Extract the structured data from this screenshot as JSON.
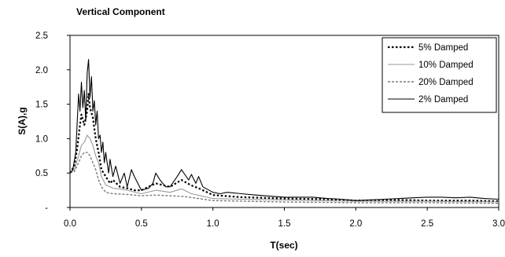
{
  "chart_data": {
    "type": "line",
    "title": "Vertical Component",
    "xlabel": "T(sec)",
    "ylabel": "S(A),g",
    "xlim": [
      0,
      3
    ],
    "ylim": [
      0,
      2.5
    ],
    "xticks": [
      "0.0",
      "0.5",
      "1.0",
      "1.5",
      "2.0",
      "2.5",
      "3.0"
    ],
    "yticks": [
      "-",
      "0.5",
      "1.0",
      "1.5",
      "2.0",
      "2.5"
    ],
    "grid": false,
    "legend_position": "top-right",
    "series": [
      {
        "name": "5%  Damped",
        "color": "#000000",
        "style": "dotted-thick",
        "x": [
          0,
          0.03,
          0.05,
          0.07,
          0.08,
          0.1,
          0.12,
          0.13,
          0.14,
          0.16,
          0.18,
          0.2,
          0.22,
          0.25,
          0.28,
          0.3,
          0.35,
          0.4,
          0.45,
          0.5,
          0.6,
          0.7,
          0.78,
          0.85,
          0.9,
          1.0,
          1.2,
          1.5,
          1.8,
          2.0,
          2.3,
          2.5,
          2.8,
          3.0
        ],
        "y": [
          0.5,
          0.6,
          0.85,
          1.2,
          1.35,
          1.2,
          1.4,
          1.65,
          1.45,
          1.3,
          1.0,
          0.8,
          0.55,
          0.45,
          0.35,
          0.4,
          0.3,
          0.28,
          0.25,
          0.25,
          0.35,
          0.3,
          0.4,
          0.32,
          0.28,
          0.18,
          0.15,
          0.13,
          0.12,
          0.1,
          0.11,
          0.1,
          0.1,
          0.09
        ]
      },
      {
        "name": "10% Damped",
        "color": "#9a9a9a",
        "style": "solid",
        "x": [
          0,
          0.03,
          0.06,
          0.08,
          0.1,
          0.12,
          0.14,
          0.16,
          0.18,
          0.2,
          0.22,
          0.25,
          0.3,
          0.35,
          0.4,
          0.5,
          0.6,
          0.7,
          0.78,
          0.85,
          1.0,
          1.2,
          1.5,
          2.0,
          2.5,
          3.0
        ],
        "y": [
          0.5,
          0.55,
          0.75,
          0.9,
          0.95,
          1.05,
          1.0,
          0.9,
          0.75,
          0.65,
          0.45,
          0.33,
          0.28,
          0.27,
          0.25,
          0.2,
          0.25,
          0.22,
          0.27,
          0.2,
          0.13,
          0.12,
          0.11,
          0.09,
          0.09,
          0.08
        ]
      },
      {
        "name": "20% Damped",
        "color": "#7a7a7a",
        "style": "dashed",
        "x": [
          0,
          0.03,
          0.06,
          0.08,
          0.1,
          0.12,
          0.14,
          0.16,
          0.18,
          0.2,
          0.22,
          0.25,
          0.3,
          0.4,
          0.5,
          0.6,
          0.7,
          0.8,
          1.0,
          1.5,
          2.0,
          2.5,
          3.0
        ],
        "y": [
          0.5,
          0.52,
          0.65,
          0.75,
          0.8,
          0.8,
          0.75,
          0.65,
          0.55,
          0.4,
          0.3,
          0.22,
          0.2,
          0.19,
          0.17,
          0.18,
          0.17,
          0.16,
          0.1,
          0.08,
          0.07,
          0.07,
          0.06
        ]
      },
      {
        "name": "2% Damped",
        "color": "#000000",
        "style": "solid",
        "x": [
          0,
          0.02,
          0.04,
          0.06,
          0.07,
          0.08,
          0.09,
          0.1,
          0.11,
          0.12,
          0.13,
          0.14,
          0.15,
          0.16,
          0.17,
          0.18,
          0.19,
          0.2,
          0.21,
          0.22,
          0.23,
          0.24,
          0.25,
          0.27,
          0.28,
          0.3,
          0.32,
          0.35,
          0.38,
          0.4,
          0.43,
          0.45,
          0.5,
          0.55,
          0.58,
          0.6,
          0.63,
          0.67,
          0.7,
          0.75,
          0.78,
          0.83,
          0.85,
          0.88,
          0.9,
          0.93,
          1.0,
          1.05,
          1.1,
          1.2,
          1.3,
          1.5,
          1.7,
          1.8,
          1.9,
          2.0,
          2.2,
          2.4,
          2.5,
          2.6,
          2.7,
          2.8,
          2.9,
          3.0
        ],
        "y": [
          0.5,
          0.55,
          0.8,
          1.65,
          1.4,
          1.82,
          1.45,
          1.7,
          1.25,
          1.95,
          2.15,
          1.6,
          1.9,
          1.4,
          1.55,
          1.2,
          1.4,
          1.0,
          1.05,
          0.8,
          0.95,
          0.65,
          0.8,
          0.5,
          0.7,
          0.45,
          0.6,
          0.35,
          0.5,
          0.3,
          0.55,
          0.45,
          0.25,
          0.28,
          0.35,
          0.5,
          0.4,
          0.3,
          0.3,
          0.45,
          0.55,
          0.4,
          0.48,
          0.35,
          0.45,
          0.3,
          0.22,
          0.2,
          0.22,
          0.2,
          0.18,
          0.15,
          0.15,
          0.13,
          0.12,
          0.1,
          0.12,
          0.14,
          0.15,
          0.15,
          0.14,
          0.15,
          0.13,
          0.12
        ]
      }
    ]
  }
}
